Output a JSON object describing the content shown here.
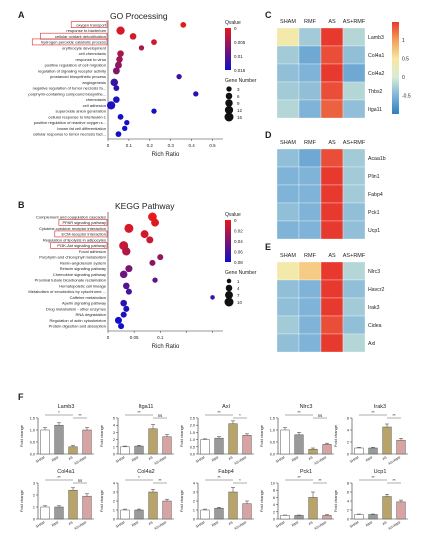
{
  "panels": {
    "A": {
      "label": "A",
      "title": "GO  Processing"
    },
    "B": {
      "label": "B",
      "title": "KEGG Pathway"
    },
    "C": {
      "label": "C"
    },
    "D": {
      "label": "D"
    },
    "E": {
      "label": "E"
    },
    "F": {
      "label": "F"
    }
  },
  "chart_data": [
    {
      "id": "A",
      "type": "scatter",
      "title": "GO  Processing",
      "xlabel": "Rich Ratio",
      "ylabel": "",
      "xlim": [
        0,
        0.55
      ],
      "xticks": [
        0,
        0.1,
        0.2,
        0.3,
        0.4,
        0.5
      ],
      "xtick_labels": [
        "0",
        "0.1",
        "0.2",
        "0.3",
        "0.4",
        "0.5"
      ],
      "color_legend": {
        "title": "Qvalue",
        "ticks": [
          "0",
          "0.005",
          "0.01",
          "0.015"
        ],
        "range": [
          0,
          0.015
        ],
        "colors": [
          "#e41a1c",
          "#1010c8"
        ]
      },
      "size_legend": {
        "title": "Gene Number",
        "values": [
          3,
          6,
          9,
          12,
          15
        ]
      },
      "highlighted_terms": [
        "oxygen transport",
        "cellular oxidant detoxification",
        "hydrogen peroxide catabolic process"
      ],
      "terms": [
        {
          "term": "oxygen transport",
          "x": 0.36,
          "count": 4,
          "q": 0.0
        },
        {
          "term": "response to bacterium",
          "x": 0.06,
          "count": 12,
          "q": 0.001
        },
        {
          "term": "cellular oxidant detoxification",
          "x": 0.12,
          "count": 6,
          "q": 0.0012
        },
        {
          "term": "hydrogen peroxide catabolic process",
          "x": 0.22,
          "count": 4,
          "q": 0.0015
        },
        {
          "term": "erythrocyte development",
          "x": 0.16,
          "count": 3,
          "q": 0.004
        },
        {
          "term": "cell chemotaxis",
          "x": 0.06,
          "count": 6,
          "q": 0.004
        },
        {
          "term": "response to virus",
          "x": 0.055,
          "count": 6,
          "q": 0.005
        },
        {
          "term": "positive regulation of cell migration",
          "x": 0.05,
          "count": 7,
          "q": 0.006
        },
        {
          "term": "regulation of signaling receptor activity",
          "x": 0.04,
          "count": 7,
          "q": 0.007
        },
        {
          "term": "prostanoid biosynthetic process",
          "x": 0.34,
          "count": 3,
          "q": 0.012
        },
        {
          "term": "angiogenesis",
          "x": 0.03,
          "count": 9,
          "q": 0.012
        },
        {
          "term": "negative regulation of tumor necrosis fa...",
          "x": 0.04,
          "count": 4,
          "q": 0.013
        },
        {
          "term": "porphyrin-containing compound biosynthe...",
          "x": 0.42,
          "count": 3,
          "q": 0.013
        },
        {
          "term": "chemotaxis",
          "x": 0.04,
          "count": 6,
          "q": 0.014
        },
        {
          "term": "cell adhesion",
          "x": 0.015,
          "count": 12,
          "q": 0.014
        },
        {
          "term": "superoxide anion generation",
          "x": 0.22,
          "count": 3,
          "q": 0.015
        },
        {
          "term": "cellular response to interleukin-1",
          "x": 0.06,
          "count": 4,
          "q": 0.015
        },
        {
          "term": "positive regulation of reactive oxygen s...",
          "x": 0.09,
          "count": 3,
          "q": 0.015
        },
        {
          "term": "brown fat cell differentiation",
          "x": 0.08,
          "count": 3,
          "q": 0.016
        },
        {
          "term": "cellular response to tumor necrosis fact...",
          "x": 0.05,
          "count": 4,
          "q": 0.016
        }
      ]
    },
    {
      "id": "B",
      "type": "scatter",
      "title": "KEGG Pathway",
      "xlabel": "Rich Ratio",
      "ylabel": "",
      "xlim": [
        0,
        0.22
      ],
      "xticks": [
        0,
        0.05,
        0.1,
        0.15,
        0.2
      ],
      "xtick_labels": [
        "0",
        "0.05",
        "0.1",
        "",
        ""
      ],
      "color_legend": {
        "title": "Qvalue",
        "ticks": [
          "0",
          "0.02",
          "0.04",
          "0.06",
          "0.08"
        ],
        "range": [
          0,
          0.08
        ],
        "colors": [
          "#e41a1c",
          "#1010c8"
        ]
      },
      "size_legend": {
        "title": "Gene Number",
        "values": [
          1,
          4,
          7,
          10
        ]
      },
      "highlighted_terms": [
        "PPAR signaling pathway",
        "ECM-receptor interaction",
        "PI3K-Akt signaling pathway"
      ],
      "terms": [
        {
          "term": "Complement and coagulation cascades",
          "x": 0.085,
          "count": 9,
          "q": 0.0
        },
        {
          "term": "PPAR signaling pathway",
          "x": 0.09,
          "count": 7,
          "q": 0.003
        },
        {
          "term": "Cytokine-cytokine receptor interaction",
          "x": 0.04,
          "count": 10,
          "q": 0.005
        },
        {
          "term": "ECM-receptor interaction",
          "x": 0.07,
          "count": 7,
          "q": 0.008
        },
        {
          "term": "Regulation of lipolysis in adipocytes",
          "x": 0.08,
          "count": 5,
          "q": 0.01
        },
        {
          "term": "PI3K-Akt signaling pathway",
          "x": 0.03,
          "count": 10,
          "q": 0.012
        },
        {
          "term": "Focal adhesion",
          "x": 0.035,
          "count": 8,
          "q": 0.02
        },
        {
          "term": "Porphyrin and chlorophyll metabolism",
          "x": 0.1,
          "count": 3,
          "q": 0.03
        },
        {
          "term": "Renin-angiotensin system",
          "x": 0.085,
          "count": 3,
          "q": 0.035
        },
        {
          "term": "Relaxin signaling pathway",
          "x": 0.04,
          "count": 5,
          "q": 0.04
        },
        {
          "term": "Chemokine signaling pathway",
          "x": 0.03,
          "count": 6,
          "q": 0.045
        },
        {
          "term": "Proximal tubule bicarbonate reclamation",
          "x": 0.09,
          "count": 2,
          "q": 0.05
        },
        {
          "term": "Hematopoietic cell lineage",
          "x": 0.035,
          "count": 4,
          "q": 0.055
        },
        {
          "term": "Metabolism of xenobiotics by cytochrome ...",
          "x": 0.04,
          "count": 3,
          "q": 0.06
        },
        {
          "term": "Caffeine metabolism",
          "x": 0.2,
          "count": 1,
          "q": 0.065
        },
        {
          "term": "Apelin signaling pathway",
          "x": 0.03,
          "count": 4,
          "q": 0.07
        },
        {
          "term": "Drug metabolism - other enzymes",
          "x": 0.035,
          "count": 3,
          "q": 0.075
        },
        {
          "term": "RNA degradation",
          "x": 0.03,
          "count": 3,
          "q": 0.075
        },
        {
          "term": "Regulation of actin cytoskeleton",
          "x": 0.02,
          "count": 5,
          "q": 0.08
        },
        {
          "term": "Protein digestion and absorption",
          "x": 0.025,
          "count": 3,
          "q": 0.08
        }
      ]
    },
    {
      "id": "C",
      "type": "heatmap",
      "columns": [
        "SHAM",
        "RMF",
        "AS",
        "AS+RMF"
      ],
      "rows": [
        "Lamb3",
        "Col4a1",
        "Col4a2",
        "Thbs2",
        "Itga11"
      ],
      "values": [
        [
          0.4,
          -0.3,
          1.5,
          -0.2
        ],
        [
          -0.3,
          -0.6,
          1.4,
          -0.4
        ],
        [
          -0.4,
          -0.5,
          1.5,
          -0.6
        ],
        [
          -0.3,
          -0.4,
          1.4,
          -0.2
        ],
        [
          -0.2,
          -0.5,
          1.3,
          -0.4
        ]
      ],
      "colorbar": {
        "ticks": [
          "1",
          "0.5",
          "0",
          "-0.5"
        ],
        "range": [
          -1,
          1.5
        ]
      }
    },
    {
      "id": "D",
      "type": "heatmap",
      "columns": [
        "SHAM",
        "RMF",
        "AS",
        "AS+RMF"
      ],
      "rows": [
        "Acaa1b",
        "Plin1",
        "Fabp4",
        "Pck1",
        "Ucp1"
      ],
      "values": [
        [
          -0.4,
          -0.6,
          1.4,
          -0.3
        ],
        [
          -0.5,
          -0.5,
          1.5,
          -0.3
        ],
        [
          -0.5,
          -0.5,
          1.5,
          -0.3
        ],
        [
          -0.4,
          -0.5,
          1.5,
          -0.4
        ],
        [
          -0.5,
          -0.5,
          1.5,
          -0.4
        ]
      ]
    },
    {
      "id": "E",
      "type": "heatmap",
      "columns": [
        "SHAM",
        "RMF",
        "AS",
        "AS+RMF"
      ],
      "rows": [
        "Nlrc3",
        "Havcr2",
        "Irak3",
        "Cidea",
        "Axl"
      ],
      "values": [
        [
          0.4,
          0.7,
          1.5,
          -0.2
        ],
        [
          -0.4,
          -0.5,
          1.5,
          -0.4
        ],
        [
          -0.4,
          -0.5,
          1.5,
          -0.3
        ],
        [
          -0.3,
          -0.5,
          1.4,
          -0.4
        ],
        [
          -0.4,
          -0.5,
          1.5,
          -0.2
        ]
      ]
    },
    {
      "id": "F",
      "type": "bar",
      "ylabel": "Fold change",
      "categories": [
        "SHAM",
        "RMF",
        "AS",
        "AS+RMF"
      ],
      "bar_colors": [
        "#ffffff",
        "#9a9a9a",
        "#b8a468",
        "#d8a3a3"
      ],
      "subplots": [
        {
          "gene": "Lamb3",
          "values": [
            1.0,
            1.2,
            0.3,
            1.0
          ],
          "errors": [
            0.1,
            0.1,
            0.05,
            0.1
          ],
          "ylim": [
            0,
            1.5
          ],
          "yticks": [
            "0.0",
            "0.5",
            "1.0",
            "1.5"
          ],
          "sig": [
            "*",
            "**"
          ]
        },
        {
          "gene": "Itga11",
          "values": [
            1.0,
            1.1,
            3.5,
            2.4
          ],
          "errors": [
            0.1,
            0.1,
            0.6,
            0.3
          ],
          "ylim": [
            0,
            5
          ],
          "yticks": [
            "0",
            "1",
            "2",
            "3",
            "4",
            "5"
          ],
          "sig": [
            "**",
            "ns"
          ]
        },
        {
          "gene": "Axl",
          "values": [
            1.0,
            1.1,
            2.1,
            1.3
          ],
          "errors": [
            0.05,
            0.1,
            0.2,
            0.1
          ],
          "ylim": [
            0,
            2.5
          ],
          "yticks": [
            "0.0",
            "0.5",
            "1.0",
            "1.5",
            "2.0",
            "2.5"
          ],
          "sig": [
            "**",
            "*"
          ]
        },
        {
          "gene": "Nlrc3",
          "values": [
            1.0,
            0.8,
            0.2,
            0.4
          ],
          "errors": [
            0.1,
            0.1,
            0.05,
            0.05
          ],
          "ylim": [
            0,
            1.5
          ],
          "yticks": [
            "0.0",
            "0.5",
            "1.0",
            "1.5"
          ],
          "sig": [
            "**",
            "ns"
          ]
        },
        {
          "gene": "Irak3",
          "values": [
            1.0,
            1.0,
            4.5,
            2.3
          ],
          "errors": [
            0.1,
            0.1,
            0.5,
            0.3
          ],
          "ylim": [
            0,
            6
          ],
          "yticks": [
            "0",
            "2",
            "4",
            "6"
          ],
          "sig": [
            "**",
            "**"
          ]
        },
        {
          "gene": "Col4a1",
          "values": [
            1.0,
            1.0,
            2.4,
            1.9
          ],
          "errors": [
            0.1,
            0.1,
            0.2,
            0.2
          ],
          "ylim": [
            0,
            3
          ],
          "yticks": [
            "0",
            "1",
            "2",
            "3"
          ],
          "sig": [
            "**",
            "ns"
          ]
        },
        {
          "gene": "Col4a2",
          "values": [
            1.0,
            1.0,
            3.0,
            2.0
          ],
          "errors": [
            0.1,
            0.1,
            0.3,
            0.2
          ],
          "ylim": [
            0,
            4
          ],
          "yticks": [
            "0",
            "1",
            "2",
            "3",
            "4"
          ],
          "sig": [
            "*",
            "**"
          ]
        },
        {
          "gene": "Fabp4",
          "values": [
            1.0,
            1.2,
            3.0,
            1.7
          ],
          "errors": [
            0.1,
            0.1,
            0.5,
            0.3
          ],
          "ylim": [
            0,
            4
          ],
          "yticks": [
            "0",
            "1",
            "2",
            "3",
            "4"
          ],
          "sig": [
            "**",
            "*"
          ]
        },
        {
          "gene": "Pck1",
          "values": [
            1.0,
            1.0,
            6.0,
            1.0
          ],
          "errors": [
            0.1,
            0.1,
            1.5,
            0.2
          ],
          "ylim": [
            0,
            10
          ],
          "yticks": [
            "0",
            "2",
            "4",
            "6",
            "8",
            "10"
          ],
          "sig": [
            "**",
            "**"
          ]
        },
        {
          "gene": "Ucp1",
          "values": [
            1.0,
            1.0,
            5.0,
            3.8
          ],
          "errors": [
            0.1,
            0.1,
            0.5,
            0.4
          ],
          "ylim": [
            0,
            8
          ],
          "yticks": [
            "0",
            "2",
            "4",
            "6",
            "8"
          ],
          "sig": [
            "**",
            "**"
          ]
        }
      ]
    }
  ]
}
